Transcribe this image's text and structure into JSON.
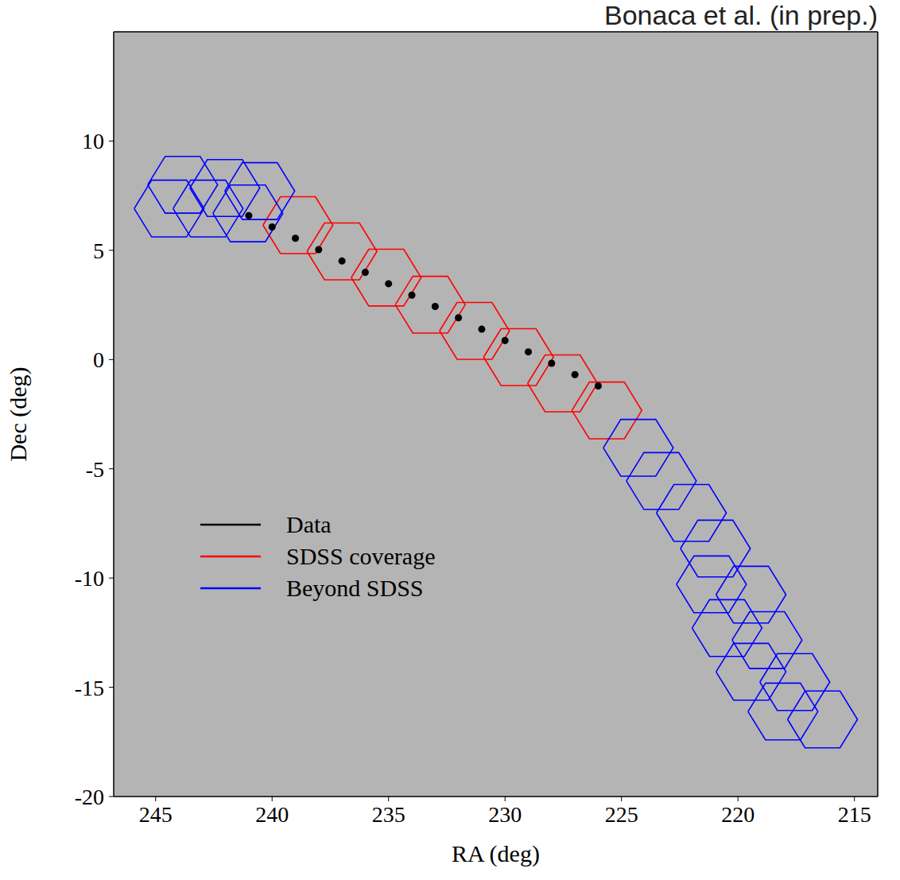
{
  "chart_data": {
    "type": "sky_map",
    "title": "Bonaca et al. (in prep.)",
    "x_label": "RA (deg)",
    "y_label": "Dec (deg)",
    "xlim": [
      246.8,
      214
    ],
    "ylim": [
      -20,
      15
    ],
    "xticks": [
      245,
      240,
      235,
      230,
      225,
      220,
      215
    ],
    "yticks": [
      -20,
      -15,
      -10,
      -5,
      0,
      5,
      10
    ],
    "grid": false,
    "legend": "left",
    "footprint_radius": 1.5,
    "series": [
      {
        "name": "Data",
        "color": "#000000",
        "type": "scatter",
        "marker": "circle",
        "x": [
          241,
          240,
          239,
          238,
          237,
          236,
          235,
          234,
          233,
          232,
          231,
          230,
          229,
          228,
          227,
          226
        ],
        "y": [
          6.59,
          6.07,
          5.55,
          5.03,
          4.51,
          3.99,
          3.47,
          2.95,
          2.43,
          1.91,
          1.39,
          0.87,
          0.35,
          -0.17,
          -0.69,
          -1.21
        ]
      },
      {
        "name": "SDSS coverage",
        "color": "#ff0000",
        "type": "hexagon",
        "x": [
          238.89,
          237.0,
          235.1,
          233.21,
          231.31,
          229.42,
          227.53,
          225.63
        ],
        "y": [
          6.15,
          4.95,
          3.75,
          2.51,
          1.31,
          0.11,
          -1.09,
          -2.33
        ]
      },
      {
        "name": "Beyond SDSS",
        "color": "#0000ff",
        "type": "hexagon",
        "x": [
          243.84,
          242.03,
          240.53,
          244.42,
          242.75,
          241.04,
          224.28,
          223.29,
          222.0,
          220.97,
          221.14,
          219.44,
          220.47,
          218.75,
          219.44,
          217.56,
          218.07,
          216.37
        ],
        "y": [
          8.0,
          7.85,
          7.71,
          6.91,
          6.91,
          6.69,
          -4.04,
          -5.56,
          -7.02,
          -8.65,
          -10.29,
          -10.76,
          -12.29,
          -12.84,
          -14.29,
          -14.76,
          -16.11,
          -16.47
        ]
      }
    ]
  }
}
